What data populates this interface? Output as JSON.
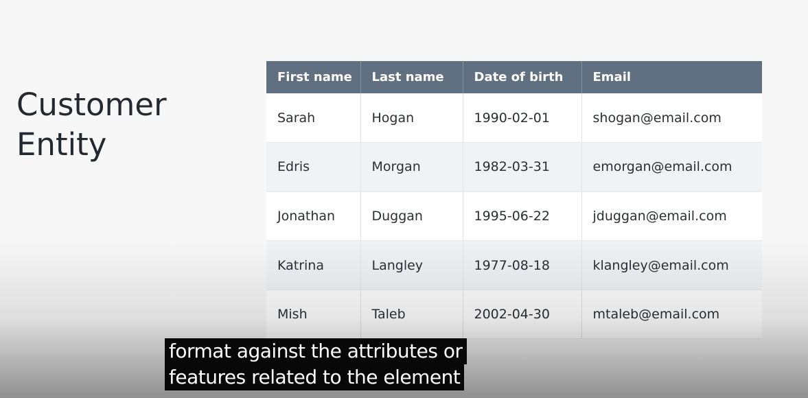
{
  "slide": {
    "title_line1": "Customer",
    "title_line2": "Entity"
  },
  "table": {
    "headers": [
      "First name",
      "Last name",
      "Date of birth",
      "Email"
    ],
    "rows": [
      [
        "Sarah",
        "Hogan",
        "1990-02-01",
        "shogan@email.com"
      ],
      [
        "Edris",
        "Morgan",
        "1982-03-31",
        "emorgan@email.com"
      ],
      [
        "Jonathan",
        "Duggan",
        "1995-06-22",
        "jduggan@email.com"
      ],
      [
        "Katrina",
        "Langley",
        "1977-08-18",
        "klangley@email.com"
      ],
      [
        "Mish",
        "Taleb",
        "2002-04-30",
        "mtaleb@email.com"
      ]
    ],
    "colors": {
      "header_bg": "#607080",
      "header_text": "#ffffff",
      "row_alt_bg": "#f0f3f6"
    }
  },
  "caption": {
    "line1": "format against the attributes or",
    "line2": "features related to the element"
  }
}
